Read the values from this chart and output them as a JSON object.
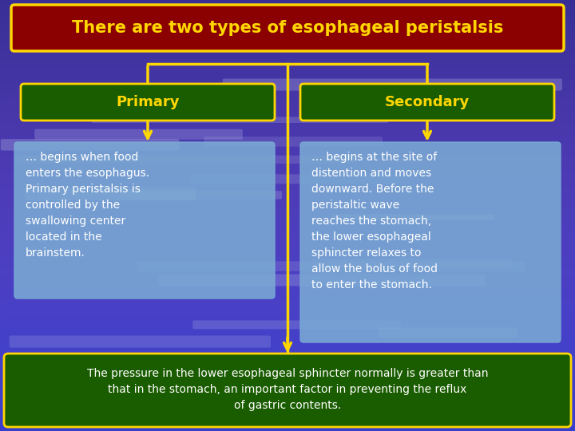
{
  "title": "There are two types of esophageal peristalsis",
  "title_bg": "#8B0000",
  "title_fg": "#FFD700",
  "title_border": "#FFD700",
  "primary_label": "Primary",
  "secondary_label": "Secondary",
  "label_bg": "#1a5c00",
  "label_fg": "#FFD700",
  "label_border": "#FFD700",
  "primary_text": "… begins when food\nenters the esophagus.\nPrimary peristalsis is\ncontrolled by the\nswallowing center\nlocated in the\nbrainstem.",
  "secondary_text": "… begins at the site of\ndistention and moves\ndownward. Before the\nperistaltic wave\nreaches the stomach,\nthe lower esophageal\nsphincter relaxes to\nallow the bolus of food\nto enter the stomach.",
  "text_box_bg": "#7aaad4",
  "text_fg": "#FFFFFF",
  "bottom_text": "The pressure in the lower esophageal sphincter normally is greater than\nthat in the stomach, an important factor in preventing the reflux\nof gastric contents.",
  "bottom_bg": "#1a5c00",
  "bottom_fg": "#FFFFFF",
  "bottom_border": "#FFD700",
  "arrow_color": "#FFD700",
  "bg_top": "#4040aa",
  "bg_bottom": "#2020aa"
}
